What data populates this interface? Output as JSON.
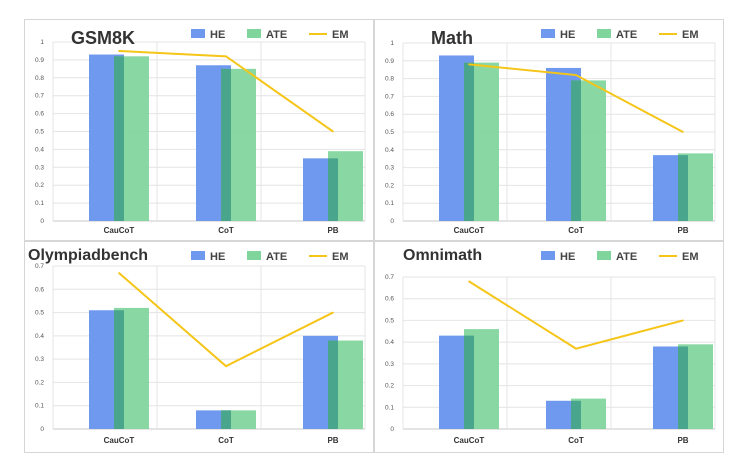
{
  "chart_data": [
    {
      "type": "bar",
      "title": "GSM8K",
      "categories": [
        "CauCoT",
        "CoT",
        "PB"
      ],
      "series": [
        {
          "name": "HE",
          "kind": "bar",
          "values": [
            0.93,
            0.87,
            0.35
          ]
        },
        {
          "name": "ATE",
          "kind": "bar",
          "values": [
            0.92,
            0.85,
            0.39
          ]
        },
        {
          "name": "EM",
          "kind": "line",
          "values": [
            0.95,
            0.92,
            0.5
          ]
        }
      ],
      "ylim": [
        0,
        1
      ],
      "yticks": [
        "0",
        "0.1",
        "0.2",
        "0.3",
        "0.4",
        "0.5",
        "0.6",
        "0.7",
        "0.8",
        "0.9",
        "1"
      ],
      "legend": "top",
      "grid": true
    },
    {
      "type": "bar",
      "title": "Math",
      "categories": [
        "CauCoT",
        "CoT",
        "PB"
      ],
      "series": [
        {
          "name": "HE",
          "kind": "bar",
          "values": [
            0.93,
            0.86,
            0.37
          ]
        },
        {
          "name": "ATE",
          "kind": "bar",
          "values": [
            0.89,
            0.79,
            0.38
          ]
        },
        {
          "name": "EM",
          "kind": "line",
          "values": [
            0.88,
            0.82,
            0.5
          ]
        }
      ],
      "ylim": [
        0,
        1
      ],
      "yticks": [
        "0",
        "0.1",
        "0.2",
        "0.3",
        "0.4",
        "0.5",
        "0.6",
        "0.7",
        "0.8",
        "0.9",
        "1"
      ],
      "legend": "top",
      "grid": true
    },
    {
      "type": "bar",
      "title": "Olympiadbench",
      "categories": [
        "CauCoT",
        "CoT",
        "PB"
      ],
      "series": [
        {
          "name": "HE",
          "kind": "bar",
          "values": [
            0.51,
            0.08,
            0.4
          ]
        },
        {
          "name": "ATE",
          "kind": "bar",
          "values": [
            0.52,
            0.08,
            0.38
          ]
        },
        {
          "name": "EM",
          "kind": "line",
          "values": [
            0.67,
            0.27,
            0.5
          ]
        }
      ],
      "ylim": [
        0,
        0.7
      ],
      "yticks": [
        "0",
        "0.1",
        "0.2",
        "0.3",
        "0.4",
        "0.5",
        "0.6",
        "0.7"
      ],
      "legend": "top",
      "grid": true
    },
    {
      "type": "bar",
      "title": "Omnimath",
      "categories": [
        "CauCoT",
        "CoT",
        "PB"
      ],
      "series": [
        {
          "name": "HE",
          "kind": "bar",
          "values": [
            0.43,
            0.13,
            0.38
          ]
        },
        {
          "name": "ATE",
          "kind": "bar",
          "values": [
            0.46,
            0.14,
            0.39
          ]
        },
        {
          "name": "EM",
          "kind": "line",
          "values": [
            0.68,
            0.37,
            0.5
          ]
        }
      ],
      "ylim": [
        0,
        0.7
      ],
      "yticks": [
        "0",
        "0.1",
        "0.2",
        "0.3",
        "0.4",
        "0.5",
        "0.6",
        "0.7"
      ],
      "legend": "top",
      "grid": true
    }
  ],
  "colors": {
    "HE": "#6e99ef",
    "ATE": "#7fd59c",
    "overlap": "#4aa58d",
    "EM": "#f5c518"
  }
}
